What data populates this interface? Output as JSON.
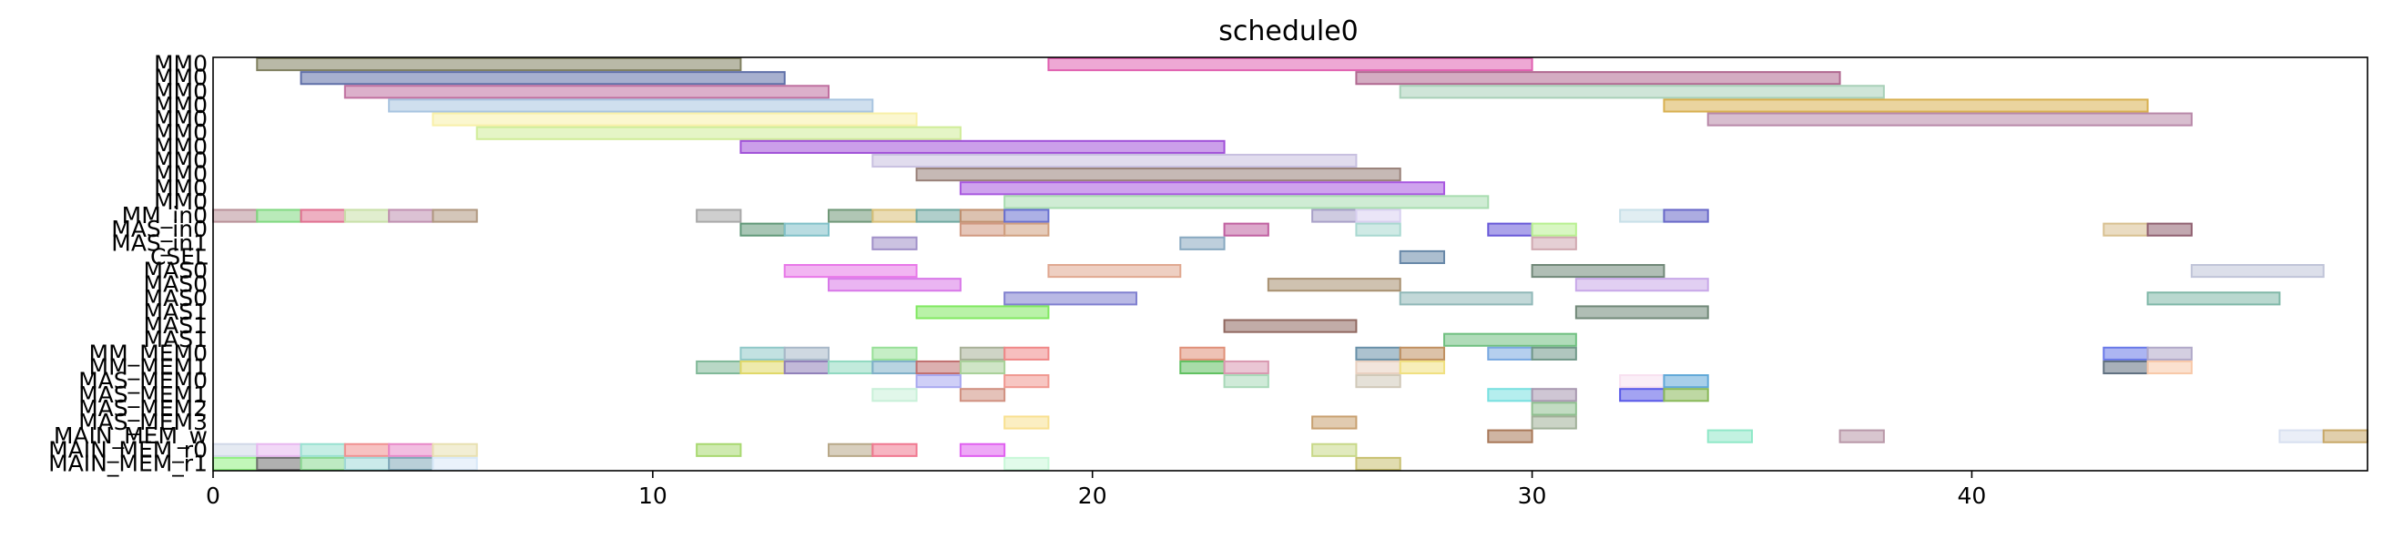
{
  "chart_data": {
    "type": "gantt",
    "title": "schedule0",
    "xlim": [
      0,
      49
    ],
    "xticks": [
      0,
      10,
      20,
      30,
      40
    ],
    "rows": [
      "MM0",
      "MM0",
      "MM0",
      "MM0",
      "MM0",
      "MM0",
      "MM0",
      "MM0",
      "MM0",
      "MM0",
      "MM0",
      "MM_in0",
      "MAS_in0",
      "MAS_in1",
      "CSEL",
      "MAS0",
      "MAS0",
      "MAS0",
      "MAS1",
      "MAS1",
      "MAS1",
      "MM_MEM0",
      "MM_MEM1",
      "MAS_MEM0",
      "MAS_MEM1",
      "MAS_MEM2",
      "MAS_MEM3",
      "MAIN_MEM_w",
      "MAIN_MEM_r0",
      "MAIN_MEM_r1"
    ],
    "tasks": [
      {
        "row": 0,
        "start": 1,
        "end": 12,
        "color": "#7f7f5f"
      },
      {
        "row": 0,
        "start": 19,
        "end": 30,
        "color": "#e060b0"
      },
      {
        "row": 1,
        "start": 2,
        "end": 13,
        "color": "#5f6fa8"
      },
      {
        "row": 1,
        "start": 26,
        "end": 37,
        "color": "#b06890"
      },
      {
        "row": 2,
        "start": 3,
        "end": 14,
        "color": "#c070a0"
      },
      {
        "row": 2,
        "start": 27,
        "end": 38,
        "color": "#a8d0b8"
      },
      {
        "row": 3,
        "start": 4,
        "end": 15,
        "color": "#a8c4e0"
      },
      {
        "row": 3,
        "start": 33,
        "end": 44,
        "color": "#d8b050"
      },
      {
        "row": 4,
        "start": 5,
        "end": 16,
        "color": "#f8f0a8"
      },
      {
        "row": 4,
        "start": 34,
        "end": 45,
        "color": "#b888a8"
      },
      {
        "row": 5,
        "start": 6,
        "end": 17,
        "color": "#d0ec98"
      },
      {
        "row": 6,
        "start": 12,
        "end": 23,
        "color": "#a050d8"
      },
      {
        "row": 7,
        "start": 15,
        "end": 26,
        "color": "#c8c0e0"
      },
      {
        "row": 8,
        "start": 16,
        "end": 27,
        "color": "#988078"
      },
      {
        "row": 9,
        "start": 17,
        "end": 28,
        "color": "#a858e0"
      },
      {
        "row": 10,
        "start": 18,
        "end": 29,
        "color": "#a8dcb0"
      },
      {
        "row": 11,
        "start": 0,
        "end": 1,
        "color": "#b89098"
      },
      {
        "row": 11,
        "start": 1,
        "end": 2,
        "color": "#80d880"
      },
      {
        "row": 11,
        "start": 2,
        "end": 3,
        "color": "#e07090"
      },
      {
        "row": 11,
        "start": 3,
        "end": 4,
        "color": "#c8e0a8"
      },
      {
        "row": 11,
        "start": 4,
        "end": 5,
        "color": "#c090b0"
      },
      {
        "row": 11,
        "start": 5,
        "end": 6,
        "color": "#b09880"
      },
      {
        "row": 11,
        "start": 11,
        "end": 12,
        "color": "#a8a8a8"
      },
      {
        "row": 11,
        "start": 14,
        "end": 15,
        "color": "#709878"
      },
      {
        "row": 11,
        "start": 15,
        "end": 16,
        "color": "#d8c078"
      },
      {
        "row": 11,
        "start": 16,
        "end": 17,
        "color": "#70a8a0"
      },
      {
        "row": 11,
        "start": 17,
        "end": 18,
        "color": "#c09070"
      },
      {
        "row": 11,
        "start": 18,
        "end": 19,
        "color": "#6870d0"
      },
      {
        "row": 11,
        "start": 25,
        "end": 26,
        "color": "#a8a0c8"
      },
      {
        "row": 11,
        "start": 26,
        "end": 27,
        "color": "#d8d0f0"
      },
      {
        "row": 11,
        "start": 32,
        "end": 33,
        "color": "#c8e0e8"
      },
      {
        "row": 11,
        "start": 33,
        "end": 34,
        "color": "#6868c8"
      },
      {
        "row": 12,
        "start": 12,
        "end": 13,
        "color": "#609878"
      },
      {
        "row": 12,
        "start": 13,
        "end": 14,
        "color": "#80c0c8"
      },
      {
        "row": 12,
        "start": 17,
        "end": 18,
        "color": "#d09880"
      },
      {
        "row": 12,
        "start": 18,
        "end": 19,
        "color": "#d0a080"
      },
      {
        "row": 12,
        "start": 23,
        "end": 24,
        "color": "#c060a0"
      },
      {
        "row": 12,
        "start": 26,
        "end": 27,
        "color": "#a8d8d0"
      },
      {
        "row": 12,
        "start": 29,
        "end": 30,
        "color": "#6858d8"
      },
      {
        "row": 12,
        "start": 30,
        "end": 31,
        "color": "#b8f090"
      },
      {
        "row": 12,
        "start": 43,
        "end": 44,
        "color": "#d8c090"
      },
      {
        "row": 12,
        "start": 44,
        "end": 45,
        "color": "#906070"
      },
      {
        "row": 13,
        "start": 15,
        "end": 16,
        "color": "#a090c8"
      },
      {
        "row": 13,
        "start": 22,
        "end": 23,
        "color": "#88a8c0"
      },
      {
        "row": 13,
        "start": 30,
        "end": 31,
        "color": "#d0a8b0"
      },
      {
        "row": 14,
        "start": 27,
        "end": 28,
        "color": "#6888a8"
      },
      {
        "row": 15,
        "start": 13,
        "end": 16,
        "color": "#e878e8"
      },
      {
        "row": 15,
        "start": 19,
        "end": 22,
        "color": "#e0a890"
      },
      {
        "row": 15,
        "start": 30,
        "end": 33,
        "color": "#708878"
      },
      {
        "row": 15,
        "start": 45,
        "end": 48,
        "color": "#c0c4d8"
      },
      {
        "row": 16,
        "start": 14,
        "end": 17,
        "color": "#d878e8"
      },
      {
        "row": 16,
        "start": 24,
        "end": 27,
        "color": "#a89070"
      },
      {
        "row": 16,
        "start": 31,
        "end": 34,
        "color": "#c8a8e8"
      },
      {
        "row": 17,
        "start": 18,
        "end": 21,
        "color": "#8080d0"
      },
      {
        "row": 17,
        "start": 27,
        "end": 30,
        "color": "#90b8b8"
      },
      {
        "row": 17,
        "start": 44,
        "end": 47,
        "color": "#80b8a8"
      },
      {
        "row": 18,
        "start": 16,
        "end": 19,
        "color": "#80e860"
      },
      {
        "row": 18,
        "start": 31,
        "end": 34,
        "color": "#708878"
      },
      {
        "row": 19,
        "start": 23,
        "end": 26,
        "color": "#906860"
      },
      {
        "row": 20,
        "start": 28,
        "end": 31,
        "color": "#70c080"
      },
      {
        "row": 21,
        "start": 12,
        "end": 13,
        "color": "#90c8c8"
      },
      {
        "row": 21,
        "start": 13,
        "end": 14,
        "color": "#a8b8c8"
      },
      {
        "row": 21,
        "start": 15,
        "end": 16,
        "color": "#98e098"
      },
      {
        "row": 21,
        "start": 17,
        "end": 18,
        "color": "#a8b098"
      },
      {
        "row": 21,
        "start": 18,
        "end": 19,
        "color": "#f08888"
      },
      {
        "row": 21,
        "start": 22,
        "end": 23,
        "color": "#e09078"
      },
      {
        "row": 21,
        "start": 26,
        "end": 27,
        "color": "#6890a8"
      },
      {
        "row": 21,
        "start": 27,
        "end": 28,
        "color": "#c09060"
      },
      {
        "row": 21,
        "start": 29,
        "end": 30,
        "color": "#78a8e0"
      },
      {
        "row": 21,
        "start": 30,
        "end": 31,
        "color": "#709888"
      },
      {
        "row": 21,
        "start": 43,
        "end": 44,
        "color": "#6878e8"
      },
      {
        "row": 21,
        "start": 44,
        "end": 45,
        "color": "#b0a8c8"
      },
      {
        "row": 22,
        "start": 11,
        "end": 12,
        "color": "#80b898"
      },
      {
        "row": 22,
        "start": 12,
        "end": 13,
        "color": "#e0d868"
      },
      {
        "row": 22,
        "start": 13,
        "end": 14,
        "color": "#9080b8"
      },
      {
        "row": 22,
        "start": 14,
        "end": 15,
        "color": "#90d8c0"
      },
      {
        "row": 22,
        "start": 15,
        "end": 16,
        "color": "#80b0c8"
      },
      {
        "row": 22,
        "start": 16,
        "end": 17,
        "color": "#c07070"
      },
      {
        "row": 22,
        "start": 17,
        "end": 18,
        "color": "#a8d098"
      },
      {
        "row": 22,
        "start": 22,
        "end": 23,
        "color": "#60c060"
      },
      {
        "row": 22,
        "start": 23,
        "end": 24,
        "color": "#d898b0"
      },
      {
        "row": 22,
        "start": 26,
        "end": 27,
        "color": "#e8d0c0"
      },
      {
        "row": 22,
        "start": 27,
        "end": 28,
        "color": "#f0e080"
      },
      {
        "row": 22,
        "start": 43,
        "end": 44,
        "color": "#607080"
      },
      {
        "row": 22,
        "start": 44,
        "end": 45,
        "color": "#f8c8a8"
      },
      {
        "row": 23,
        "start": 16,
        "end": 17,
        "color": "#a8a8f0"
      },
      {
        "row": 23,
        "start": 18,
        "end": 19,
        "color": "#f09890"
      },
      {
        "row": 23,
        "start": 23,
        "end": 24,
        "color": "#a8d8b8"
      },
      {
        "row": 23,
        "start": 26,
        "end": 27,
        "color": "#d0c8b8"
      },
      {
        "row": 23,
        "start": 32,
        "end": 33,
        "color": "#f8e0f0"
      },
      {
        "row": 23,
        "start": 33,
        "end": 34,
        "color": "#60a8d8"
      },
      {
        "row": 24,
        "start": 15,
        "end": 16,
        "color": "#c8f0d8"
      },
      {
        "row": 24,
        "start": 17,
        "end": 18,
        "color": "#d09080"
      },
      {
        "row": 24,
        "start": 29,
        "end": 30,
        "color": "#78e0e0"
      },
      {
        "row": 24,
        "start": 30,
        "end": 31,
        "color": "#a898b0"
      },
      {
        "row": 24,
        "start": 32,
        "end": 33,
        "color": "#5858e8"
      },
      {
        "row": 24,
        "start": 33,
        "end": 34,
        "color": "#88b858"
      },
      {
        "row": 25,
        "start": 30,
        "end": 31,
        "color": "#90c090"
      },
      {
        "row": 26,
        "start": 18,
        "end": 19,
        "color": "#f8e090"
      },
      {
        "row": 26,
        "start": 25,
        "end": 26,
        "color": "#c8a070"
      },
      {
        "row": 26,
        "start": 30,
        "end": 31,
        "color": "#a0b098"
      },
      {
        "row": 27,
        "start": 29,
        "end": 30,
        "color": "#a87858"
      },
      {
        "row": 27,
        "start": 34,
        "end": 35,
        "color": "#90e8c8"
      },
      {
        "row": 27,
        "start": 37,
        "end": 38,
        "color": "#b898a8"
      },
      {
        "row": 27,
        "start": 47,
        "end": 48,
        "color": "#d8e0f0"
      },
      {
        "row": 27,
        "start": 48,
        "end": 49,
        "color": "#c8a868"
      },
      {
        "row": 28,
        "start": 0,
        "end": 1,
        "color": "#d0d8e8"
      },
      {
        "row": 28,
        "start": 1,
        "end": 2,
        "color": "#e8b8f0"
      },
      {
        "row": 28,
        "start": 2,
        "end": 3,
        "color": "#98e0d0"
      },
      {
        "row": 28,
        "start": 3,
        "end": 4,
        "color": "#f09090"
      },
      {
        "row": 28,
        "start": 4,
        "end": 5,
        "color": "#e888c8"
      },
      {
        "row": 28,
        "start": 5,
        "end": 6,
        "color": "#e8e0b0"
      },
      {
        "row": 28,
        "start": 11,
        "end": 12,
        "color": "#a8d870"
      },
      {
        "row": 28,
        "start": 14,
        "end": 15,
        "color": "#b8a888"
      },
      {
        "row": 28,
        "start": 15,
        "end": 16,
        "color": "#f07890"
      },
      {
        "row": 28,
        "start": 17,
        "end": 18,
        "color": "#e060f0"
      },
      {
        "row": 28,
        "start": 25,
        "end": 26,
        "color": "#c8d888"
      },
      {
        "row": 29,
        "start": 0,
        "end": 1,
        "color": "#90f080"
      },
      {
        "row": 29,
        "start": 1,
        "end": 2,
        "color": "#707070"
      },
      {
        "row": 29,
        "start": 2,
        "end": 3,
        "color": "#88d890"
      },
      {
        "row": 29,
        "start": 3,
        "end": 4,
        "color": "#a0d8d8"
      },
      {
        "row": 29,
        "start": 4,
        "end": 5,
        "color": "#80a8b8"
      },
      {
        "row": 29,
        "start": 5,
        "end": 6,
        "color": "#d8e8f8"
      },
      {
        "row": 29,
        "start": 18,
        "end": 19,
        "color": "#c8f8d8"
      },
      {
        "row": 29,
        "start": 26,
        "end": 27,
        "color": "#c8c070"
      }
    ]
  }
}
